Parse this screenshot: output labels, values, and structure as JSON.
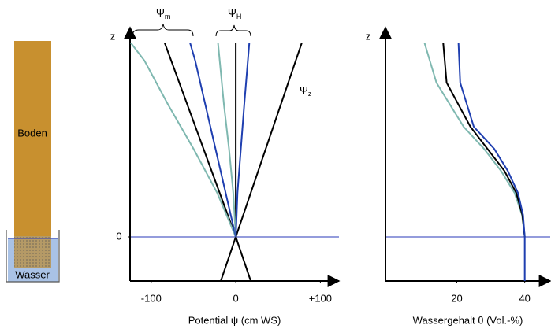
{
  "illustration": {
    "soil_label": "Boden",
    "water_label": "Wasser"
  },
  "chart_data": [
    {
      "type": "line",
      "x_label": "Potential ψ (cm WS)",
      "y_label": "z",
      "xlim": [
        -125,
        122
      ],
      "ylim": [
        -1,
        4.75
      ],
      "xticks": [
        -100,
        0,
        {
          "value": 100,
          "label": "+100"
        }
      ],
      "yticks": [
        0
      ],
      "zero_line": true,
      "zero_line_color": "#2a3ab8",
      "annotations": [
        {
          "symbol": "Ψ",
          "sub": "m"
        },
        {
          "symbol": "Ψ",
          "sub": "H"
        },
        {
          "symbol": "Ψ",
          "sub": "z"
        }
      ],
      "series": [
        {
          "color": "#000000",
          "x": [
            -17.7,
            0,
            78
          ],
          "y": [
            -1,
            0,
            4.4
          ]
        },
        {
          "color": "#000000",
          "x": [
            17.7,
            0,
            -84
          ],
          "y": [
            -1,
            0,
            4.4
          ]
        },
        {
          "color": "#000000",
          "x": [
            0,
            0
          ],
          "y": [
            0,
            4.4
          ]
        },
        {
          "color": "#7fb8b0",
          "x": [
            0,
            -22,
            -50,
            -80,
            -108,
            -124
          ],
          "y": [
            0,
            1,
            2,
            3,
            4,
            4.4
          ]
        },
        {
          "color": "#1f3fb0",
          "x": [
            0,
            -12,
            -24,
            -36,
            -48,
            -54
          ],
          "y": [
            0,
            1,
            2,
            3,
            4,
            4.4
          ]
        },
        {
          "color": "#7fb8b0",
          "x": [
            0,
            -3,
            -8,
            -14,
            -21
          ],
          "y": [
            0,
            1,
            2,
            3,
            4.4
          ]
        },
        {
          "color": "#1f3fb0",
          "x": [
            0,
            2,
            6,
            10,
            16
          ],
          "y": [
            0,
            1,
            2,
            3,
            4.4
          ]
        }
      ]
    },
    {
      "type": "line",
      "x_label": "Wassergehalt θ (Vol.-%)",
      "y_label": "z",
      "xlim": [
        -1,
        47.5
      ],
      "ylim": [
        -1,
        4.75
      ],
      "xticks": [
        20,
        40
      ],
      "zero_line": true,
      "zero_line_color": "#2a3ab8",
      "series": [
        {
          "color": "#7fb8b0",
          "x": [
            40,
            39.2,
            37,
            33,
            28,
            22,
            14,
            10.5
          ],
          "y": [
            0,
            0.5,
            1,
            1.5,
            2,
            2.5,
            3.5,
            4.4
          ]
        },
        {
          "color": "#000000",
          "x": [
            40,
            39.3,
            37.5,
            34,
            29,
            24,
            17,
            16
          ],
          "y": [
            0,
            0.5,
            1,
            1.5,
            2,
            2.5,
            3.5,
            4.4
          ]
        },
        {
          "color": "#1f3fb0",
          "x": [
            40,
            40,
            39.5,
            38,
            35,
            31,
            25,
            21,
            20.5
          ],
          "y": [
            -1,
            0,
            0.5,
            1,
            1.5,
            2,
            2.5,
            3.5,
            4.4
          ]
        }
      ]
    }
  ]
}
